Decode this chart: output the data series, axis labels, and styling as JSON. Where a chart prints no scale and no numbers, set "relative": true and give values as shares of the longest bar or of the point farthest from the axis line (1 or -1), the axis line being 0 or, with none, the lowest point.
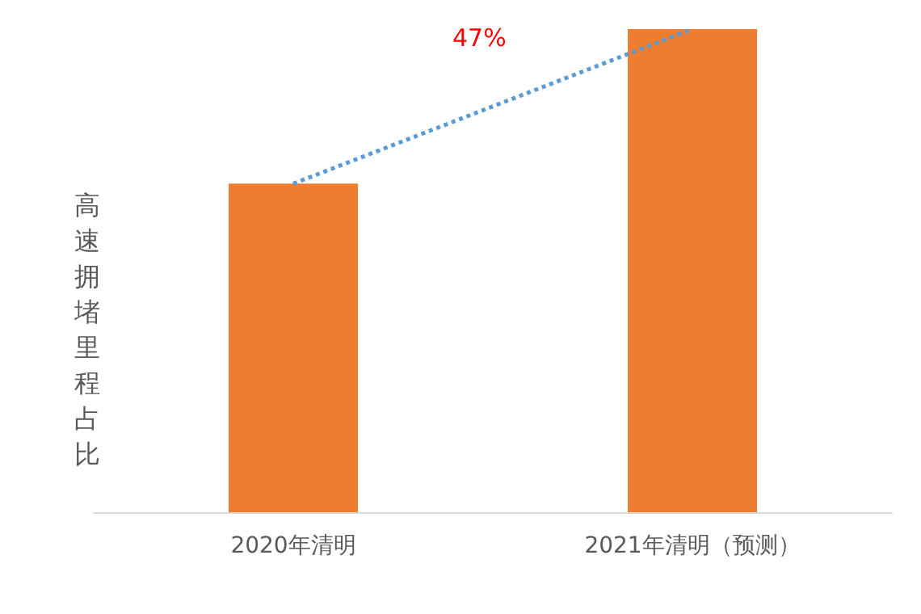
{
  "chart_data": {
    "type": "bar",
    "relative": true,
    "ylabel": "高速拥堵里程占比",
    "categories": [
      "2020年清明",
      "2021年清明（预测）"
    ],
    "series": [
      {
        "color": "#ed7d31",
        "values": [
          0.68,
          1
        ]
      },
      {
        "type": "line",
        "color": "#5b9bd5",
        "line_style": "dotted",
        "values": [
          0.68,
          1
        ]
      }
    ],
    "annotations": [
      "47%"
    ]
  }
}
